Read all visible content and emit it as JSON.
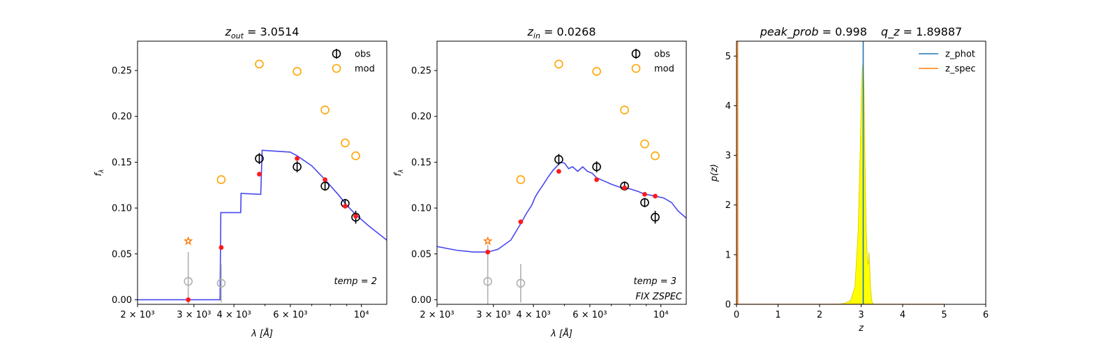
{
  "chart_data": [
    {
      "type": "scatter",
      "title": "z_out = 3.0514",
      "title_main": "z",
      "title_sub": "out",
      "title_value": " = 3.0514",
      "xlabel": "λ [Å]",
      "ylabel": "f_λ",
      "xscale": "log",
      "xlim": [
        2000,
        12000
      ],
      "ylim": [
        -0.005,
        0.282
      ],
      "xticks": [
        {
          "value": 2000,
          "label": "2 × 10³"
        },
        {
          "value": 3000,
          "label": "3 × 10³"
        },
        {
          "value": 4000,
          "label": "4 × 10³"
        },
        {
          "value": 6000,
          "label": "6 × 10³"
        },
        {
          "value": 10000,
          "label": "10⁴"
        }
      ],
      "yticks": [
        "0.00",
        "0.05",
        "0.10",
        "0.15",
        "0.20",
        "0.25"
      ],
      "legend": {
        "position": "top-right",
        "entries": [
          "obs",
          "mod"
        ]
      },
      "annotation": "temp = 2",
      "series": [
        {
          "name": "obs",
          "color": "#000000",
          "x": [
            4800,
            6300,
            7700,
            8900,
            9600
          ],
          "y": [
            0.154,
            0.145,
            0.124,
            0.105,
            0.09
          ],
          "yerr": [
            0.006,
            0.006,
            0.005,
            0.005,
            0.007
          ]
        },
        {
          "name": "obs (upper limit)",
          "color": "#b0b0b0",
          "x": [
            2880,
            3650
          ],
          "y": [
            0.02,
            0.018
          ],
          "yerr": [
            0.032,
            0.021
          ]
        },
        {
          "name": "mod",
          "color": "#ffa500",
          "x": [
            3650,
            4800,
            6300,
            7700,
            8900,
            9600
          ],
          "y": [
            0.131,
            0.257,
            0.249,
            0.207,
            0.171,
            0.157
          ]
        },
        {
          "name": "mod (upper limit)",
          "color": "#ff7f0e",
          "marker": "star",
          "x": [
            2880
          ],
          "y": [
            0.064
          ]
        },
        {
          "name": "model photometry",
          "color": "#ff1a1a",
          "x": [
            2880,
            3650,
            4800,
            6300,
            7700,
            8900,
            9600
          ],
          "y": [
            0.0,
            0.057,
            0.137,
            0.154,
            0.131,
            0.102,
            0.091
          ]
        },
        {
          "name": "template",
          "color": "#3333ee",
          "x": [
            2000,
            3620,
            3640,
            3700,
            4200,
            4210,
            4850,
            4900,
            6000,
            6300,
            7000,
            7700,
            8500,
            9000,
            9600,
            10500,
            12000
          ],
          "y": [
            0.0,
            0.0,
            0.095,
            0.095,
            0.095,
            0.116,
            0.115,
            0.163,
            0.161,
            0.157,
            0.146,
            0.131,
            0.114,
            0.103,
            0.093,
            0.081,
            0.065
          ]
        }
      ]
    },
    {
      "type": "scatter",
      "title": "z_in = 0.0268",
      "title_main": "z",
      "title_sub": "in",
      "title_value": " = 0.0268",
      "xlabel": "λ [Å]",
      "ylabel": "f_λ",
      "xscale": "log",
      "xlim": [
        2000,
        12000
      ],
      "ylim": [
        -0.005,
        0.282
      ],
      "xticks": [
        {
          "value": 2000,
          "label": "2 × 10³"
        },
        {
          "value": 3000,
          "label": "3 × 10³"
        },
        {
          "value": 4000,
          "label": "4 × 10³"
        },
        {
          "value": 6000,
          "label": "6 × 10³"
        },
        {
          "value": 10000,
          "label": "10⁴"
        }
      ],
      "yticks": [
        "0.00",
        "0.05",
        "0.10",
        "0.15",
        "0.20",
        "0.25"
      ],
      "legend": {
        "position": "top-right",
        "entries": [
          "obs",
          "mod"
        ]
      },
      "annotation": "temp = 3",
      "annotation2": "FIX ZSPEC",
      "series": [
        {
          "name": "obs",
          "color": "#000000",
          "x": [
            4800,
            6300,
            7700,
            8900,
            9600
          ],
          "y": [
            0.153,
            0.145,
            0.124,
            0.106,
            0.09
          ],
          "yerr": [
            0.006,
            0.006,
            0.005,
            0.005,
            0.007
          ]
        },
        {
          "name": "obs (upper limit)",
          "color": "#b0b0b0",
          "x": [
            2880,
            3650
          ],
          "y": [
            0.02,
            0.018
          ],
          "yerr": [
            0.04,
            0.021
          ]
        },
        {
          "name": "mod",
          "color": "#ffa500",
          "x": [
            3650,
            4800,
            6300,
            7700,
            8900,
            9600
          ],
          "y": [
            0.131,
            0.257,
            0.249,
            0.207,
            0.17,
            0.157
          ]
        },
        {
          "name": "mod (upper limit)",
          "color": "#ff7f0e",
          "marker": "star",
          "x": [
            2880
          ],
          "y": [
            0.064
          ]
        },
        {
          "name": "model photometry",
          "color": "#ff1a1a",
          "x": [
            2880,
            3650,
            4800,
            6300,
            7700,
            8900,
            9600
          ],
          "y": [
            0.052,
            0.085,
            0.14,
            0.131,
            0.122,
            0.115,
            0.113
          ]
        },
        {
          "name": "template",
          "color": "#3333ee",
          "x": [
            2000,
            2300,
            2600,
            2880,
            3100,
            3400,
            3650,
            3800,
            3950,
            4050,
            4150,
            4300,
            4450,
            4600,
            4750,
            4850,
            5000,
            5150,
            5300,
            5500,
            5700,
            5900,
            6100,
            6300,
            6600,
            7000,
            7400,
            7700,
            8000,
            8500,
            8900,
            9300,
            9600,
            10200,
            10800,
            11300,
            12000
          ],
          "y": [
            0.058,
            0.054,
            0.052,
            0.052,
            0.055,
            0.065,
            0.083,
            0.094,
            0.103,
            0.112,
            0.118,
            0.126,
            0.134,
            0.141,
            0.146,
            0.15,
            0.149,
            0.143,
            0.145,
            0.14,
            0.145,
            0.14,
            0.138,
            0.133,
            0.13,
            0.126,
            0.123,
            0.122,
            0.121,
            0.118,
            0.115,
            0.114,
            0.113,
            0.111,
            0.106,
            0.097,
            0.089
          ]
        }
      ]
    },
    {
      "type": "line",
      "title": "peak_prob = 0.998     q_z = 1.89887",
      "title_left": "peak_prob",
      "title_left_value": " = 0.998",
      "title_right": "q_z",
      "title_right_value": " = 1.89887",
      "xlabel": "z",
      "ylabel": "p(z)",
      "xlim": [
        0,
        6
      ],
      "ylim": [
        0,
        5.3
      ],
      "xticks": [
        "0",
        "1",
        "2",
        "3",
        "4",
        "5",
        "6"
      ],
      "yticks": [
        "0",
        "1",
        "2",
        "3",
        "4",
        "5"
      ],
      "legend": {
        "position": "top-right",
        "entries": [
          "z_phot",
          "z_spec"
        ]
      },
      "series": [
        {
          "name": "z_phot",
          "color": "#1f77b4",
          "x": [
            3.05
          ],
          "type": "vline"
        },
        {
          "name": "z_spec",
          "color": "#ff7f0e",
          "x": [
            0.0,
            0.0268,
            0.0268,
            0.03,
            5.0
          ],
          "y": [
            0.0,
            0.0,
            5.3,
            0.0,
            0.0
          ]
        },
        {
          "name": "p(z)",
          "color": "#ffff00",
          "x": [
            0.0,
            2.4,
            2.6,
            2.75,
            2.85,
            2.93,
            2.98,
            3.01,
            3.03,
            3.05,
            3.07,
            3.09,
            3.12,
            3.15,
            3.17,
            3.19,
            3.21,
            3.23,
            3.26,
            3.3,
            5.0
          ],
          "y": [
            0.0,
            0.0,
            0.02,
            0.08,
            0.35,
            1.5,
            3.2,
            4.4,
            4.8,
            4.85,
            4.3,
            3.0,
            1.6,
            0.9,
            0.8,
            1.05,
            0.7,
            0.3,
            0.05,
            0.0,
            0.0
          ]
        }
      ]
    }
  ]
}
